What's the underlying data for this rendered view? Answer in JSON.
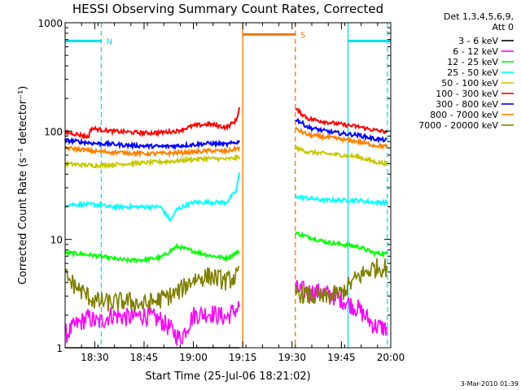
{
  "chart_data": {
    "type": "line",
    "title": "HESSI Observing Summary Count Rates, Corrected",
    "xlabel": "Start Time (25-Jul-06 18:21:02)",
    "ylabel": "Corrected Count Rate (s⁻¹ detector⁻¹)",
    "yscale": "log",
    "ylim": [
      1,
      1000
    ],
    "xlim": [
      "18:21",
      "20:00"
    ],
    "x_ticks": [
      "18:30",
      "18:45",
      "19:00",
      "19:15",
      "19:30",
      "19:45",
      "20:00"
    ],
    "y_ticks": [
      "1",
      "10",
      "100",
      "1000"
    ],
    "legend_title": [
      "Det 1,3,4,5,6,9,",
      "Att 0"
    ],
    "legend_position": "top-right, outside plot",
    "footer": "3-Mar-2010 01:39",
    "flags": [
      {
        "label": "N",
        "color": "#00e0f0",
        "start": "18:21",
        "end": "18:32",
        "level": 680
      },
      {
        "label": "S",
        "color": "#f07800",
        "start": "19:15",
        "end": "19:31",
        "level": 780
      },
      {
        "label": "",
        "color": "#00e0f0",
        "start": "19:47",
        "end": "20:00",
        "level": 680
      }
    ],
    "vlines": [
      {
        "x": "18:32",
        "color": "#00e0f0",
        "style": "dashed"
      },
      {
        "x": "19:15",
        "color": "#f07800",
        "style": "solid"
      },
      {
        "x": "19:31",
        "color": "#f07800",
        "style": "dashed"
      },
      {
        "x": "19:47",
        "color": "#00e0f0",
        "style": "solid"
      },
      {
        "x": "19:59",
        "color": "#00e0f0",
        "style": "dashed"
      }
    ],
    "gap": [
      "19:15",
      "19:31"
    ],
    "series": [
      {
        "name": "3 - 6 keV",
        "color": "#000000",
        "x": [
          "18:21",
          "19:14"
        ],
        "y": [
          1,
          1
        ]
      },
      {
        "name": "6 - 12 keV",
        "color": "#ff00ff",
        "x": [
          "18:21",
          "18:24",
          "18:28",
          "18:31",
          "18:35",
          "18:40",
          "18:45",
          "18:50",
          "18:53",
          "18:56",
          "19:00",
          "19:05",
          "19:10",
          "19:14",
          "19:31",
          "19:35",
          "19:40",
          "19:45",
          "19:50",
          "19:55",
          "19:59"
        ],
        "y": [
          1.3,
          1.6,
          1.9,
          1.7,
          2.0,
          1.9,
          2.0,
          1.8,
          1.5,
          1.2,
          2.0,
          2.1,
          1.9,
          2.4,
          3.5,
          3.3,
          3.2,
          2.8,
          2.3,
          1.6,
          1.5
        ]
      },
      {
        "name": "12 - 25 keV",
        "color": "#00ff00",
        "x": [
          "18:21",
          "18:25",
          "18:30",
          "18:35",
          "18:40",
          "18:45",
          "18:50",
          "18:55",
          "19:00",
          "19:05",
          "19:10",
          "19:14",
          "19:31",
          "19:35",
          "19:40",
          "19:45",
          "19:50",
          "19:55",
          "19:59"
        ],
        "y": [
          7.5,
          7.4,
          7.1,
          6.7,
          6.4,
          6.5,
          6.8,
          8.6,
          7.8,
          7.1,
          6.7,
          7.8,
          11.5,
          10.5,
          9.5,
          9.0,
          8.6,
          7.5,
          7.3
        ]
      },
      {
        "name": "25 - 50 keV",
        "color": "#00ffff",
        "x": [
          "18:21",
          "18:25",
          "18:30",
          "18:35",
          "18:40",
          "18:45",
          "18:50",
          "18:53",
          "18:55",
          "19:00",
          "19:05",
          "19:10",
          "19:13",
          "19:14",
          "19:31",
          "19:35",
          "19:40",
          "19:45",
          "19:50",
          "19:55",
          "19:59"
        ],
        "y": [
          21,
          21,
          21,
          20,
          20,
          20,
          20,
          15,
          19,
          22,
          22,
          22,
          28,
          42,
          25,
          24,
          23,
          23,
          23,
          22,
          22
        ]
      },
      {
        "name": "50 - 100 keV",
        "color": "#c8c800",
        "x": [
          "18:21",
          "18:25",
          "18:30",
          "18:35",
          "18:40",
          "18:45",
          "18:50",
          "18:55",
          "19:00",
          "19:05",
          "19:10",
          "19:14",
          "19:31",
          "19:35",
          "19:40",
          "19:45",
          "19:50",
          "19:55",
          "19:59"
        ],
        "y": [
          50,
          49,
          48,
          49,
          50,
          51,
          52,
          53,
          55,
          56,
          55,
          57,
          70,
          64,
          62,
          60,
          58,
          52,
          50
        ]
      },
      {
        "name": "100 - 300 keV",
        "color": "#ff0000",
        "x": [
          "18:21",
          "18:25",
          "18:28",
          "18:29",
          "18:35",
          "18:40",
          "18:45",
          "18:50",
          "18:55",
          "19:00",
          "19:05",
          "19:10",
          "19:13",
          "19:14",
          "19:31",
          "19:35",
          "19:40",
          "19:45",
          "19:50",
          "19:55",
          "19:59"
        ],
        "y": [
          98,
          93,
          88,
          106,
          100,
          98,
          96,
          97,
          100,
          112,
          116,
          108,
          125,
          165,
          160,
          130,
          122,
          115,
          110,
          102,
          98
        ]
      },
      {
        "name": "300 - 800 keV",
        "color": "#0000ff",
        "x": [
          "18:21",
          "18:25",
          "18:30",
          "18:35",
          "18:40",
          "18:45",
          "18:50",
          "18:55",
          "19:00",
          "19:05",
          "19:10",
          "19:14",
          "19:31",
          "19:35",
          "19:40",
          "19:45",
          "19:50",
          "19:55",
          "19:59"
        ],
        "y": [
          82,
          80,
          77,
          76,
          74,
          73,
          72,
          73,
          75,
          77,
          75,
          80,
          130,
          108,
          100,
          95,
          92,
          85,
          82
        ]
      },
      {
        "name": "800 - 7000 keV",
        "color": "#ff8000",
        "x": [
          "18:21",
          "18:25",
          "18:30",
          "18:35",
          "18:40",
          "18:45",
          "18:50",
          "18:55",
          "19:00",
          "19:05",
          "19:10",
          "19:14",
          "19:31",
          "19:35",
          "19:40",
          "19:45",
          "19:50",
          "19:55",
          "19:59"
        ],
        "y": [
          70,
          68,
          65,
          64,
          63,
          62,
          62,
          63,
          64,
          66,
          65,
          70,
          105,
          92,
          88,
          84,
          80,
          74,
          72
        ]
      },
      {
        "name": "7000 - 20000 keV",
        "color": "#808000",
        "x": [
          "18:21",
          "18:25",
          "18:30",
          "18:35",
          "18:40",
          "18:45",
          "18:50",
          "18:55",
          "19:00",
          "19:05",
          "19:10",
          "19:14",
          "19:31",
          "19:35",
          "19:40",
          "19:45",
          "19:50",
          "19:55",
          "19:59"
        ],
        "y": [
          4.6,
          3.5,
          2.7,
          2.6,
          2.7,
          2.5,
          2.8,
          3.2,
          4.3,
          4.6,
          4.1,
          4.7,
          3.3,
          3.0,
          2.9,
          3.2,
          4.5,
          5.5,
          5.5
        ]
      }
    ]
  }
}
